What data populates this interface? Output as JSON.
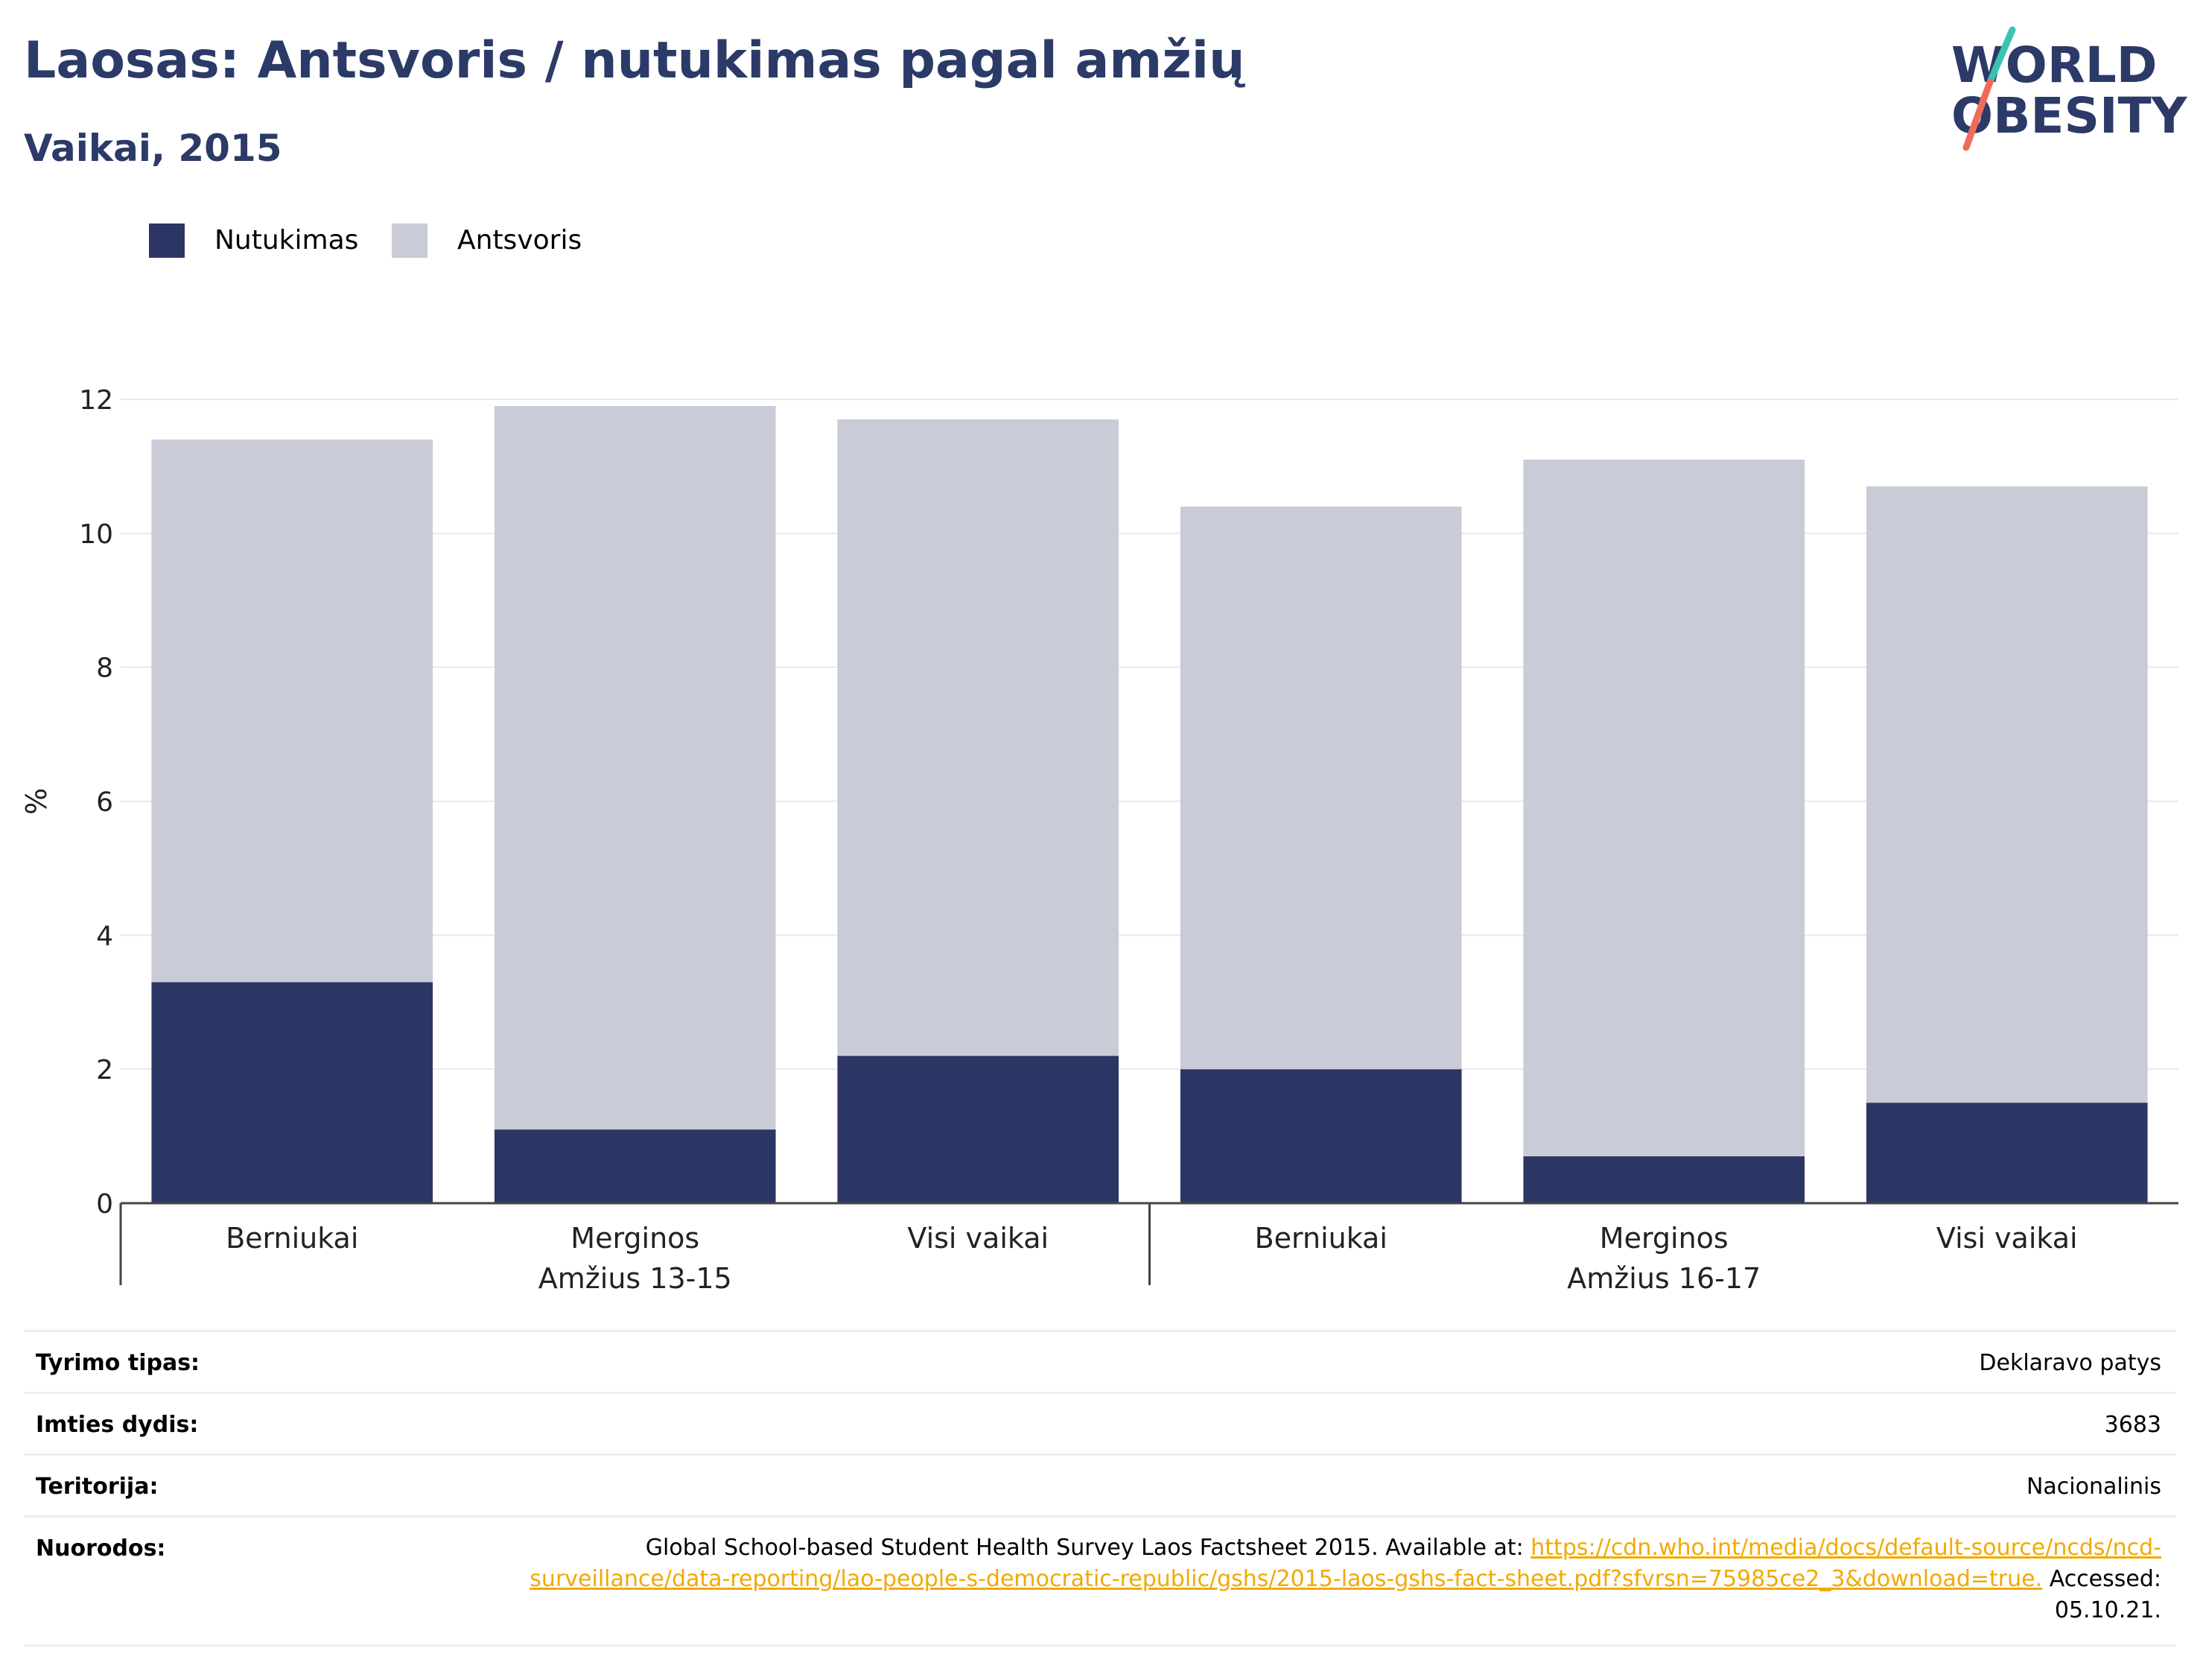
{
  "header": {
    "title": "Laosas: Antsvoris / nutukimas pagal amžių",
    "subtitle": "Vaikai, 2015"
  },
  "logo": {
    "line1": "WORLD",
    "line2": "OBESITY",
    "colors": {
      "text": "#2b3a67",
      "slash_top": "#3cc1b3",
      "slash_bottom": "#ef6c5a"
    }
  },
  "legend": [
    {
      "label": "Nutukimas",
      "color": "#2b3664"
    },
    {
      "label": "Antsvoris",
      "color": "#c9cbd7"
    }
  ],
  "chart_data": {
    "type": "bar",
    "stacked": true,
    "ylabel": "%",
    "ylim": [
      0,
      12
    ],
    "yticks": [
      0,
      2,
      4,
      6,
      8,
      10,
      12
    ],
    "grid": true,
    "legend_position": "top-left",
    "groups": [
      {
        "label": "Amžius 13-15",
        "categories": [
          "Berniukai",
          "Merginos",
          "Visi vaikai"
        ]
      },
      {
        "label": "Amžius 16-17",
        "categories": [
          "Berniukai",
          "Merginos",
          "Visi vaikai"
        ]
      }
    ],
    "series": [
      {
        "name": "Nutukimas",
        "color": "#2b3664",
        "values": [
          3.3,
          1.1,
          2.2,
          2.0,
          0.7,
          1.5
        ]
      },
      {
        "name": "Antsvoris",
        "color": "#c9cbd7",
        "values": [
          8.1,
          10.8,
          9.5,
          8.4,
          10.4,
          9.2
        ]
      }
    ]
  },
  "info": {
    "rows": [
      {
        "label": "Tyrimo tipas:",
        "value": "Deklaravo patys"
      },
      {
        "label": "Imties dydis:",
        "value": "3683"
      },
      {
        "label": "Teritorija:",
        "value": "Nacionalinis"
      }
    ],
    "reference": {
      "label": "Nuorodos:",
      "text_before": "Global School-based Student Health Survey Laos Factsheet 2015. Available at: ",
      "link": "https://cdn.who.int/media/docs/default-source/ncds/ncd-surveillance/data-reporting/lao-people-s-democratic-republic/gshs/2015-laos-gshs-fact-sheet.pdf?sfvrsn=75985ce2_3&download=true.",
      "text_after": " Accessed: 05.10.21."
    }
  }
}
